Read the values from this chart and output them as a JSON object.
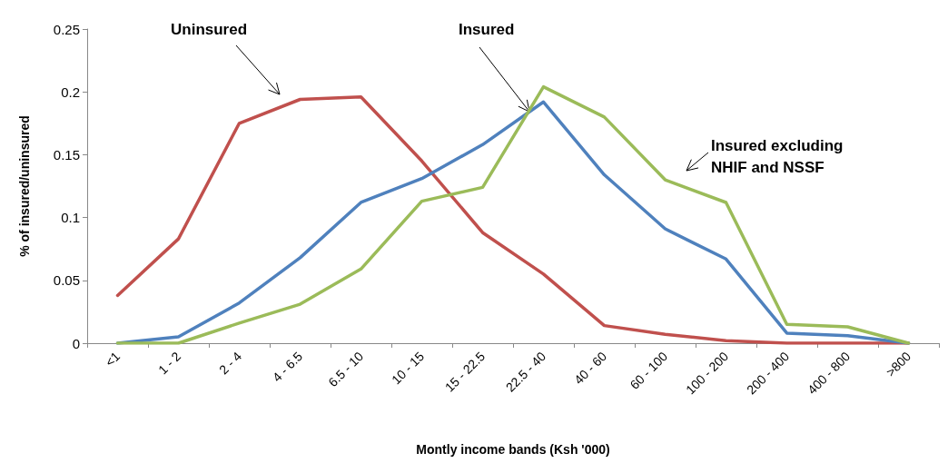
{
  "chart_data": {
    "type": "line",
    "xlabel": "Montly income bands (Ksh '000)",
    "ylabel": "% of insured/uninsured",
    "categories": [
      "<1",
      "1 - 2",
      "2 - 4",
      "4 - 6.5",
      "6.5 - 10",
      "10 - 15",
      "15 - 22.5",
      "22.5 - 40",
      "40 - 60",
      "60 - 100",
      "100 - 200",
      "200 - 400",
      "400 - 800",
      ">800"
    ],
    "series": [
      {
        "name": "Uninsured",
        "color": "#c0504d",
        "values": [
          0.038,
          0.083,
          0.175,
          0.194,
          0.196,
          0.145,
          0.088,
          0.055,
          0.014,
          0.007,
          0.002,
          0,
          0,
          0
        ]
      },
      {
        "name": "Insured",
        "color": "#4f81bd",
        "values": [
          0,
          0.005,
          0.032,
          0.068,
          0.112,
          0.131,
          0.158,
          0.192,
          0.134,
          0.091,
          0.067,
          0.008,
          0.006,
          0
        ]
      },
      {
        "name": "Insured excluding NHIF and NSSF",
        "color": "#9bbb59",
        "values": [
          0,
          0,
          0.016,
          0.031,
          0.059,
          0.113,
          0.124,
          0.204,
          0.18,
          0.13,
          0.112,
          0.015,
          0.013,
          0
        ]
      }
    ],
    "ylim": [
      0,
      0.25
    ],
    "yticks": [
      0,
      0.05,
      0.1,
      0.15,
      0.2,
      0.25
    ],
    "grid": false,
    "legend": false,
    "marker": "none",
    "line_style": "solid"
  }
}
